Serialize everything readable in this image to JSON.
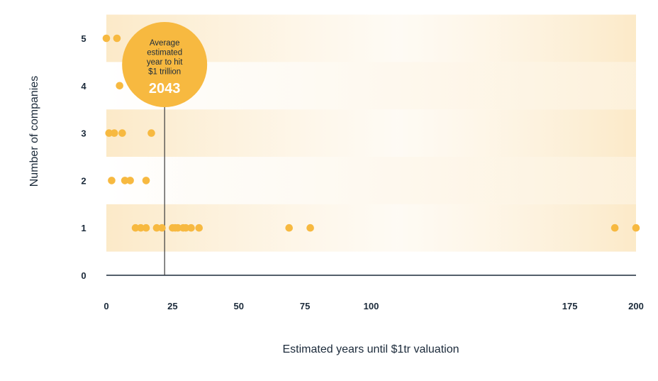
{
  "chart_data": {
    "type": "scatter",
    "title": "",
    "xlabel": "Estimated years until $1tr valuation",
    "ylabel": "Number of companies",
    "xlim": [
      0,
      200
    ],
    "ylim": [
      0,
      5
    ],
    "x_ticks": [
      "0",
      "25",
      "50",
      "75",
      "100",
      "175",
      "200"
    ],
    "y_ticks": [
      "0",
      "1",
      "2",
      "3",
      "4",
      "5"
    ],
    "grid": false,
    "banded_background": true,
    "colors": {
      "point": "#f7b940",
      "annotation": "#f7b940",
      "band_strong": "#fbe7c2",
      "axis": "#1b2a3a"
    },
    "series": [
      {
        "points": [
          [
            0,
            5
          ],
          [
            4,
            5
          ],
          [
            5,
            4
          ],
          [
            1,
            3
          ],
          [
            3,
            3
          ],
          [
            6,
            3
          ],
          [
            17,
            3
          ],
          [
            2,
            2
          ],
          [
            7,
            2
          ],
          [
            9,
            2
          ],
          [
            15,
            2
          ],
          [
            11,
            1
          ],
          [
            13,
            1
          ],
          [
            15,
            1
          ],
          [
            19,
            1
          ],
          [
            21,
            1
          ],
          [
            25,
            1
          ],
          [
            26,
            1
          ],
          [
            27,
            1
          ],
          [
            29,
            1
          ],
          [
            30,
            1
          ],
          [
            32,
            1
          ],
          [
            35,
            1
          ],
          [
            69,
            1
          ],
          [
            77,
            1
          ],
          [
            192,
            1
          ],
          [
            200,
            1
          ]
        ]
      }
    ],
    "annotation": {
      "x": 22,
      "lines": [
        "Average",
        "estimated",
        "year to hit",
        "$1 trillion"
      ],
      "value": "2043"
    }
  }
}
